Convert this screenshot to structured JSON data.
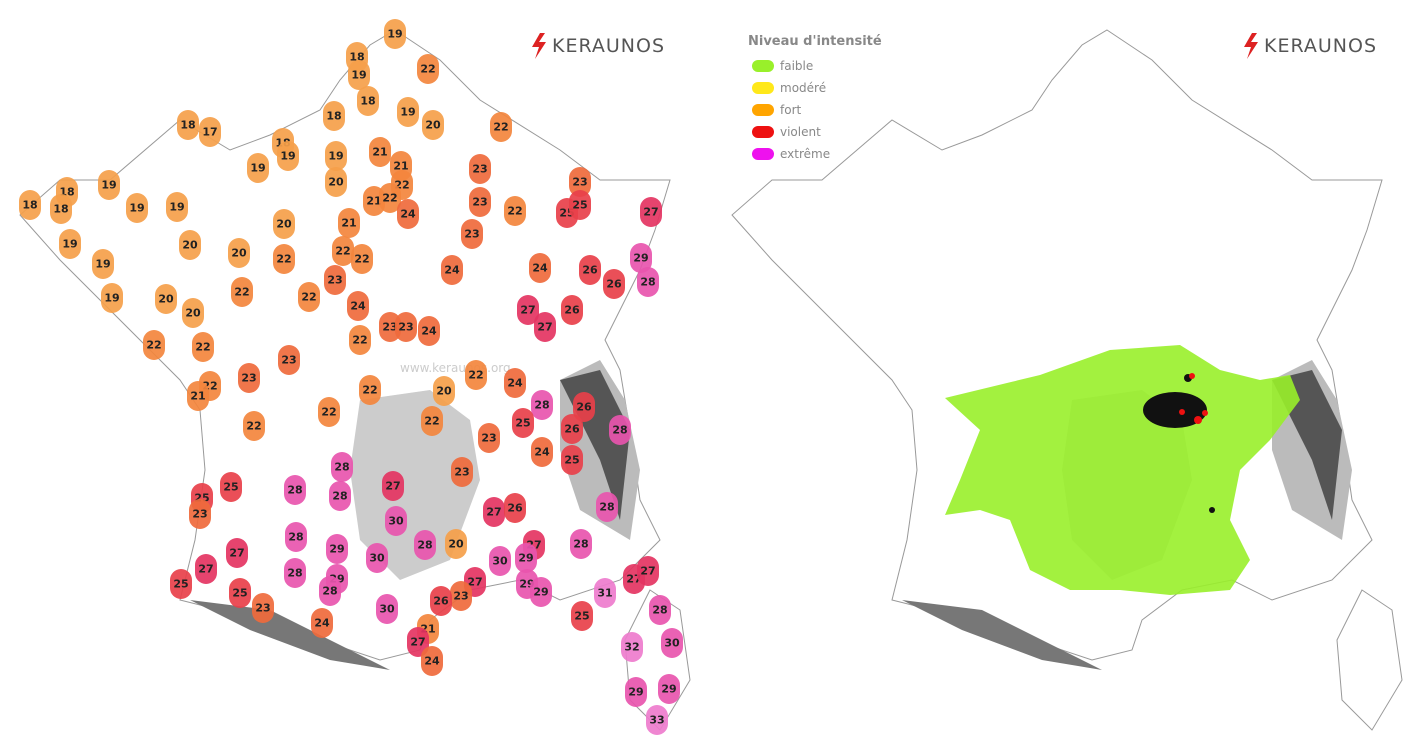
{
  "logos": [
    "KERAUNOS",
    "KERAUNOS"
  ],
  "watermark": "www.keraunos.org",
  "legend": {
    "title": "Niveau d'intensité",
    "levels": [
      {
        "label": "faible",
        "color": "#99f02a"
      },
      {
        "label": "modéré",
        "color": "#ffe81a"
      },
      {
        "label": "fort",
        "color": "#ffa500"
      },
      {
        "label": "violent",
        "color": "#ee1111"
      },
      {
        "label": "extrême",
        "color": "#ee11ee"
      }
    ]
  },
  "temperatures": [
    19,
    18,
    19,
    22,
    18,
    19,
    18,
    20,
    22,
    18,
    17,
    18,
    19,
    19,
    21,
    19,
    21,
    20,
    23,
    22,
    23,
    19,
    18,
    18,
    18,
    19,
    19,
    21,
    22,
    24,
    23,
    22,
    25,
    25,
    27,
    20,
    21,
    19,
    20,
    20,
    22,
    22,
    22,
    23,
    19,
    23,
    24,
    24,
    26,
    29,
    26,
    28,
    19,
    20,
    22,
    22,
    24,
    20,
    27,
    26,
    27,
    23,
    23,
    24,
    22,
    22,
    22,
    23,
    22,
    23,
    24,
    22,
    21,
    22,
    20,
    22,
    28,
    26,
    22,
    22,
    25,
    26,
    28,
    23,
    24,
    25,
    28,
    23,
    25,
    28,
    28,
    27,
    25,
    23,
    28,
    27,
    26,
    30,
    28,
    28,
    20,
    28,
    29,
    30,
    27,
    30,
    27,
    29,
    27,
    28,
    25,
    29,
    28,
    27,
    29,
    29,
    31,
    27,
    27,
    25,
    23,
    26,
    23,
    30,
    25,
    28,
    24,
    21,
    27,
    30,
    32,
    24,
    29,
    29,
    33
  ]
}
